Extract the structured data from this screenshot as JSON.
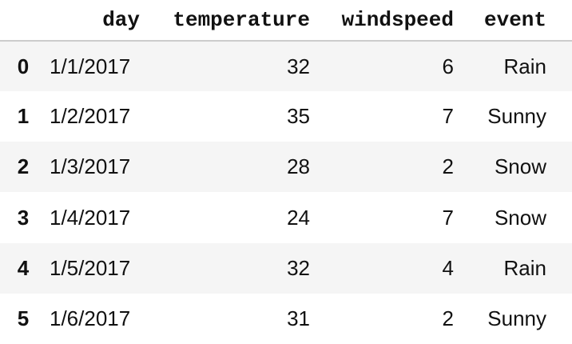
{
  "table": {
    "columns": [
      "day",
      "temperature",
      "windspeed",
      "event"
    ],
    "rows": [
      {
        "index": "0",
        "day": "1/1/2017",
        "temperature": "32",
        "windspeed": "6",
        "event": "Rain"
      },
      {
        "index": "1",
        "day": "1/2/2017",
        "temperature": "35",
        "windspeed": "7",
        "event": "Sunny"
      },
      {
        "index": "2",
        "day": "1/3/2017",
        "temperature": "28",
        "windspeed": "2",
        "event": "Snow"
      },
      {
        "index": "3",
        "day": "1/4/2017",
        "temperature": "24",
        "windspeed": "7",
        "event": "Snow"
      },
      {
        "index": "4",
        "day": "1/5/2017",
        "temperature": "32",
        "windspeed": "4",
        "event": "Rain"
      },
      {
        "index": "5",
        "day": "1/6/2017",
        "temperature": "31",
        "windspeed": "2",
        "event": "Sunny"
      }
    ],
    "stripe_color": "#f5f5f5",
    "header_border_color": "#cccccc"
  }
}
